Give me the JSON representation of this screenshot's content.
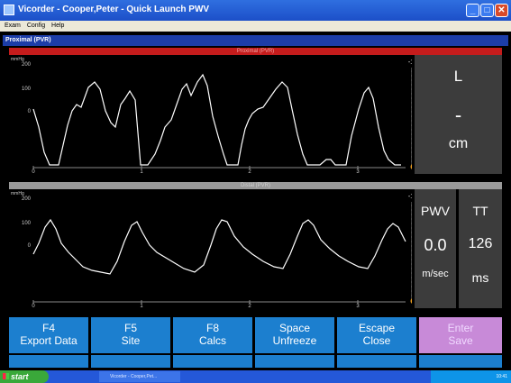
{
  "window": {
    "title": "Vicorder - Cooper,Peter - Quick Launch PWV",
    "minimize_glyph": "_",
    "maximize_glyph": "□",
    "close_glyph": "✕"
  },
  "menu": [
    "Exam",
    "Config",
    "Help"
  ],
  "panel": {
    "title": "Proximal (PVR)"
  },
  "proximal": {
    "header": "Proximal (PVR)",
    "unit": "mmHg",
    "y_ticks": [
      "200",
      "100",
      "0"
    ],
    "x_ticks": [
      "0",
      "1",
      "2",
      "3"
    ],
    "scale_top": "-1",
    "side_label_1": "L",
    "side_label_2": "-",
    "side_label_3": "cm",
    "level_fraction": 0.0
  },
  "distal": {
    "header": "Distal (PVR)",
    "unit": "mmHg",
    "y_ticks": [
      "200",
      "100",
      "0"
    ],
    "x_ticks": [
      "0",
      "1",
      "2",
      "3"
    ],
    "scale_top": "-1",
    "pwv_label": "PWV",
    "pwv_value": "0.0",
    "pwv_unit": "m/sec",
    "tt_label": "TT",
    "tt_value": "126",
    "tt_unit": "ms",
    "level_fraction": 0.0
  },
  "buttons": [
    {
      "key": "F4",
      "label": "Export Data"
    },
    {
      "key": "F5",
      "label": "Site"
    },
    {
      "key": "F8",
      "label": "Calcs"
    },
    {
      "key": "Space",
      "label": "Unfreeze"
    },
    {
      "key": "Escape",
      "label": "Close"
    },
    {
      "key": "Enter",
      "label": "Save"
    }
  ],
  "taskbar": {
    "start": "start",
    "task_item": "Vicorder - Cooper,Pet...",
    "clock": "10:41"
  },
  "colors": {
    "accent": "#1c7fcf",
    "trace": "#ffffff",
    "enter_button": "#c88ad8",
    "proximal_bar": "#c41c1c",
    "distal_bar": "#9a9a9a"
  },
  "icons": [
    "app-icon",
    "start-icon",
    "level-knob-icon"
  ]
}
